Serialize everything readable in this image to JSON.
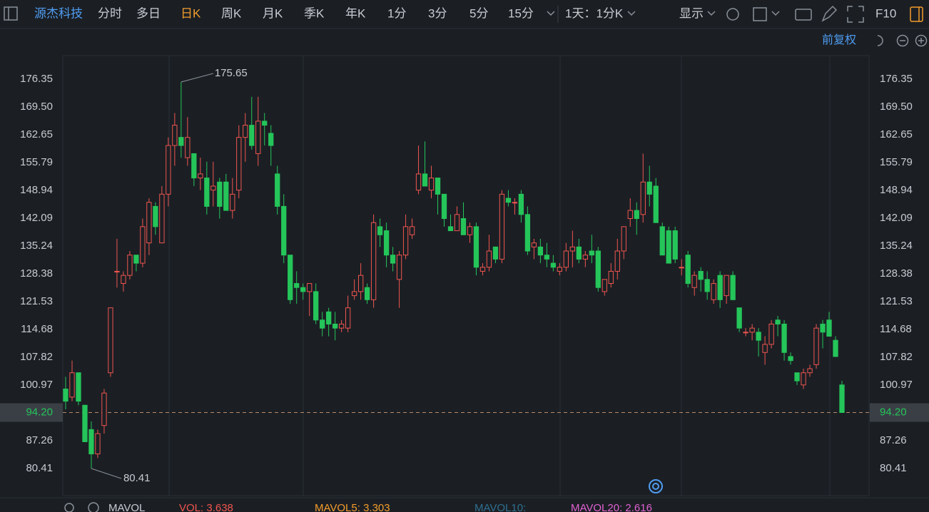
{
  "toolbar": {
    "stock_name": "源杰科技",
    "tabs": [
      "分时",
      "多日",
      "日K",
      "周K",
      "月K",
      "季K",
      "年K",
      "1分",
      "3分",
      "5分",
      "15分"
    ],
    "active_tab": "日K",
    "period_select": "1天：1分K",
    "display": "显示",
    "f10": "F10"
  },
  "adjust": "前复权",
  "indicator_bar": {
    "name": "MAVOL",
    "vol": "VOL: 3.638",
    "mavol5": "MAVOL5: 3.303",
    "mavol10": "MAVOL10:",
    "mavol20": "MAVOL20: 2.616"
  },
  "chart_data": {
    "type": "candlestick",
    "up_color": "#f0554f",
    "down_color": "#25c55a",
    "ylim": [
      73.73,
      182.15
    ],
    "yticks": [
      176.35,
      {
        "value": 169.5,
        "label": "169.50"
      },
      162.65,
      155.79,
      148.94,
      142.09,
      135.24,
      128.38,
      121.53,
      114.68,
      107.82,
      100.97,
      {
        "value": 94.2,
        "label": "94.20"
      },
      87.26,
      80.41
    ],
    "high_label": 175.65,
    "low_label": 80.41,
    "last_price": {
      "value": 94.2,
      "label": "94.20"
    },
    "ohlc": [
      [
        100,
        103,
        95,
        97
      ],
      [
        98,
        107,
        97,
        104
      ],
      [
        104,
        104,
        96,
        97
      ],
      [
        96,
        96,
        87,
        87
      ],
      [
        90,
        92,
        80.41,
        84
      ],
      [
        84,
        90,
        83,
        89
      ],
      [
        91,
        100,
        89,
        99
      ],
      [
        104,
        120,
        103,
        120
      ],
      [
        129,
        137,
        125,
        129
      ],
      [
        126,
        129,
        124,
        128
      ],
      [
        128,
        134,
        127,
        133
      ],
      [
        133,
        133,
        129,
        131
      ],
      [
        131,
        142,
        130,
        140
      ],
      [
        136,
        147,
        133,
        146
      ],
      [
        145,
        146,
        138,
        140
      ],
      [
        136,
        150,
        136,
        148
      ],
      [
        148,
        162,
        145,
        160
      ],
      [
        160,
        168,
        155,
        165
      ],
      [
        162,
        175.65,
        157,
        160
      ],
      [
        157,
        167,
        155,
        162
      ],
      [
        158,
        158,
        150,
        152
      ],
      [
        152,
        157,
        149,
        153
      ],
      [
        152,
        156,
        143,
        145
      ],
      [
        149,
        156,
        145,
        150
      ],
      [
        151,
        152,
        142,
        145
      ],
      [
        151,
        153,
        144,
        144
      ],
      [
        144,
        152,
        142,
        148
      ],
      [
        149,
        165,
        147,
        162
      ],
      [
        162,
        168,
        156,
        165
      ],
      [
        165,
        172,
        159,
        160
      ],
      [
        158,
        172,
        155,
        166
      ],
      [
        166,
        168,
        160,
        165
      ],
      [
        163,
        165,
        155,
        160
      ],
      [
        153,
        155,
        143,
        145
      ],
      [
        145,
        148,
        131,
        133
      ],
      [
        133,
        133,
        121,
        122
      ],
      [
        126,
        129,
        121,
        125
      ],
      [
        125,
        126,
        122,
        124
      ],
      [
        124,
        126,
        118,
        126
      ],
      [
        124,
        126,
        116,
        117
      ],
      [
        117,
        119,
        113,
        115
      ],
      [
        119,
        120,
        113,
        116
      ],
      [
        116,
        119,
        112,
        115
      ],
      [
        115,
        117,
        114,
        116
      ],
      [
        115,
        123,
        114,
        120
      ],
      [
        123,
        127,
        122,
        124
      ],
      [
        124,
        131,
        122,
        128
      ],
      [
        125,
        126,
        121,
        122
      ],
      [
        122,
        143,
        120,
        141
      ],
      [
        140,
        142,
        135,
        138
      ],
      [
        139,
        141,
        130,
        133
      ],
      [
        133,
        135,
        129,
        131
      ],
      [
        127,
        134,
        120,
        133
      ],
      [
        133,
        143,
        132,
        140
      ],
      [
        138,
        142,
        137,
        140
      ],
      [
        149,
        160,
        148,
        153
      ],
      [
        153,
        161,
        150,
        150
      ],
      [
        149,
        155,
        147,
        152
      ],
      [
        152,
        152,
        143,
        148
      ],
      [
        148,
        148,
        140,
        142
      ],
      [
        140,
        143,
        139,
        139
      ],
      [
        139,
        145,
        139,
        143
      ],
      [
        142,
        146,
        138,
        138
      ],
      [
        138,
        141,
        136,
        140
      ],
      [
        140,
        141,
        128,
        130
      ],
      [
        129,
        131,
        128,
        130
      ],
      [
        130,
        138,
        129,
        134
      ],
      [
        135,
        135,
        131,
        132
      ],
      [
        132,
        149,
        131,
        148
      ],
      [
        147,
        149,
        145,
        146
      ],
      [
        146,
        147,
        143,
        146
      ],
      [
        148,
        149,
        141,
        143
      ],
      [
        143,
        145,
        133,
        134
      ],
      [
        135,
        137,
        132,
        136
      ],
      [
        135,
        137,
        131,
        133
      ],
      [
        133,
        136,
        130,
        132
      ],
      [
        131,
        133,
        129,
        130
      ],
      [
        129,
        131,
        128,
        130
      ],
      [
        130,
        136,
        129,
        134
      ],
      [
        134,
        139,
        130,
        135
      ],
      [
        135,
        137,
        131,
        132
      ],
      [
        132,
        134,
        130,
        133
      ],
      [
        134,
        138,
        131,
        133
      ],
      [
        134,
        135,
        124,
        125
      ],
      [
        124,
        127,
        123,
        127
      ],
      [
        126,
        131,
        125,
        129
      ],
      [
        129,
        137,
        127,
        134
      ],
      [
        134,
        140,
        132,
        140
      ],
      [
        142,
        147,
        140,
        144
      ],
      [
        144,
        146,
        138,
        142
      ],
      [
        143,
        158,
        141,
        151
      ],
      [
        151,
        155,
        145,
        148
      ],
      [
        150,
        152,
        141,
        141
      ],
      [
        140,
        141,
        133,
        133
      ],
      [
        139,
        140,
        131,
        131
      ],
      [
        139,
        140,
        131,
        132
      ],
      [
        130,
        132,
        128,
        130
      ],
      [
        133,
        134,
        125,
        126
      ],
      [
        125,
        129,
        123,
        128
      ],
      [
        129,
        130,
        124,
        127
      ],
      [
        127,
        129,
        122,
        124
      ],
      [
        122,
        127,
        121,
        126
      ],
      [
        128,
        129,
        120,
        122
      ],
      [
        123,
        128,
        121,
        128
      ],
      [
        128,
        129,
        122,
        122
      ],
      [
        120,
        120,
        114,
        115
      ],
      [
        114,
        115,
        113,
        114
      ],
      [
        114,
        116,
        112,
        115
      ],
      [
        114,
        115,
        108,
        112
      ],
      [
        109,
        113,
        106,
        111
      ],
      [
        111,
        117,
        110,
        116
      ],
      [
        117,
        118,
        113,
        116
      ],
      [
        116,
        117,
        107,
        109
      ],
      [
        108,
        109,
        106,
        107
      ],
      [
        104,
        104,
        101,
        102
      ],
      [
        101,
        105,
        100,
        104
      ],
      [
        104,
        106,
        103,
        105
      ],
      [
        106,
        116,
        105,
        115
      ],
      [
        116,
        117,
        110,
        114
      ],
      [
        117,
        119,
        113,
        113
      ],
      [
        112,
        113,
        108,
        108
      ],
      [
        101,
        102,
        94.2,
        94.2
      ]
    ]
  }
}
